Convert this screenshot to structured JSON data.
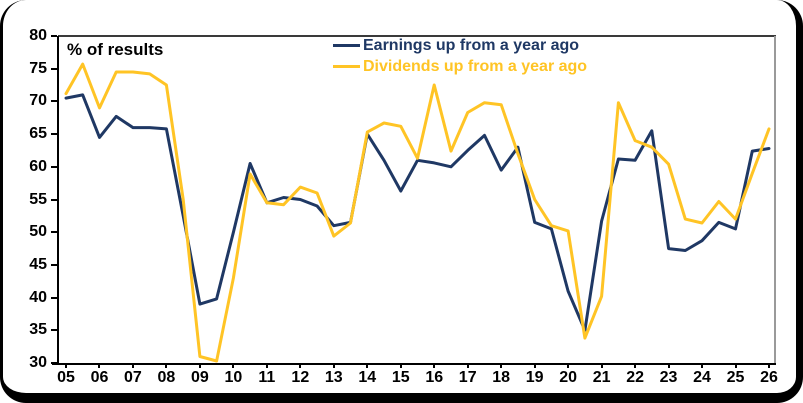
{
  "chart_data": {
    "type": "line",
    "plot_label": "% of results",
    "ylim": [
      30,
      80
    ],
    "y_ticks": [
      80,
      75,
      70,
      65,
      60,
      55,
      50,
      45,
      40,
      35,
      30
    ],
    "x_tick_labels": [
      "05",
      "06",
      "07",
      "08",
      "09",
      "10",
      "11",
      "12",
      "13",
      "14",
      "15",
      "16",
      "17",
      "18",
      "19",
      "20",
      "21",
      "22",
      "23",
      "24",
      "25",
      "26"
    ],
    "x_start": 2005,
    "x_step": 0.5,
    "grid": false,
    "legend_position": "top-center",
    "series": [
      {
        "name": "Earnings up from a year ago",
        "color": "#1F3864",
        "values": [
          70.5,
          71,
          64.5,
          67.7,
          66,
          66,
          65.8,
          52.5,
          39,
          39.8,
          50,
          60.5,
          54.5,
          55.3,
          55,
          54,
          51,
          51.5,
          65,
          61,
          56.3,
          61,
          60.6,
          60,
          62.5,
          64.8,
          59.5,
          63,
          51.5,
          50.5,
          41,
          35,
          51.7,
          61.2,
          61,
          65.5,
          47.5,
          47.2,
          48.7,
          51.5,
          50.5,
          62.4,
          62.8
        ]
      },
      {
        "name": "Dividends up from a year ago",
        "color": "#FFC425",
        "values": [
          71.2,
          75.7,
          69,
          74.5,
          74.5,
          74.2,
          72.5,
          55,
          31,
          30.3,
          43,
          58.9,
          54.5,
          54.2,
          56.9,
          56,
          49.4,
          51.4,
          65.3,
          66.7,
          66.2,
          61.3,
          72.5,
          62.4,
          68.3,
          69.8,
          69.5,
          62,
          55,
          51,
          50.2,
          33.8,
          40.2,
          69.8,
          64,
          63,
          60.4,
          52,
          51.4,
          54.7,
          52,
          59,
          65.8
        ]
      }
    ]
  }
}
